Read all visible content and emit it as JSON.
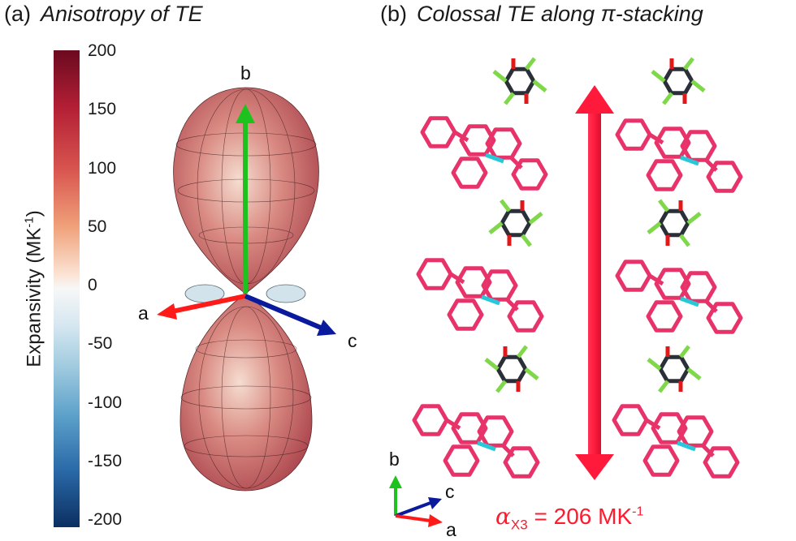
{
  "panel_a": {
    "tag": "(a)",
    "title": "Anisotropy of TE",
    "colorbar": {
      "label": "Expansivity (MK",
      "label_sup": "-1",
      "label_end": ")",
      "ticks": [
        "200",
        "150",
        "100",
        "50",
        "0",
        "-50",
        "-100",
        "-150",
        "-200"
      ],
      "range": [
        -200,
        200
      ],
      "colors": {
        "max": "#6b0a1f",
        "zero": "#f7f7f7",
        "min": "#0c2f62"
      }
    },
    "axes": {
      "a": "a",
      "b": "b",
      "c": "c"
    },
    "axis_colors": {
      "a": "#ff1a1a",
      "b": "#1ec21e",
      "c": "#0a1a9c"
    }
  },
  "panel_b": {
    "tag": "(b)",
    "title": "Colossal TE along π-stacking",
    "axes": {
      "a": "a",
      "b": "b",
      "c": "c"
    },
    "formula": {
      "symbol": "α",
      "sub": "X3",
      "eq": " = 206 MK",
      "sup": "-1"
    },
    "colors": {
      "arrow": "#ff1a3c",
      "pink_molecule": "#e8336a",
      "dark_molecule": "#2a2f38",
      "fluorine": "#7fd84a",
      "oxygen": "#e01818",
      "nitrogen": "#28c8d8"
    }
  }
}
